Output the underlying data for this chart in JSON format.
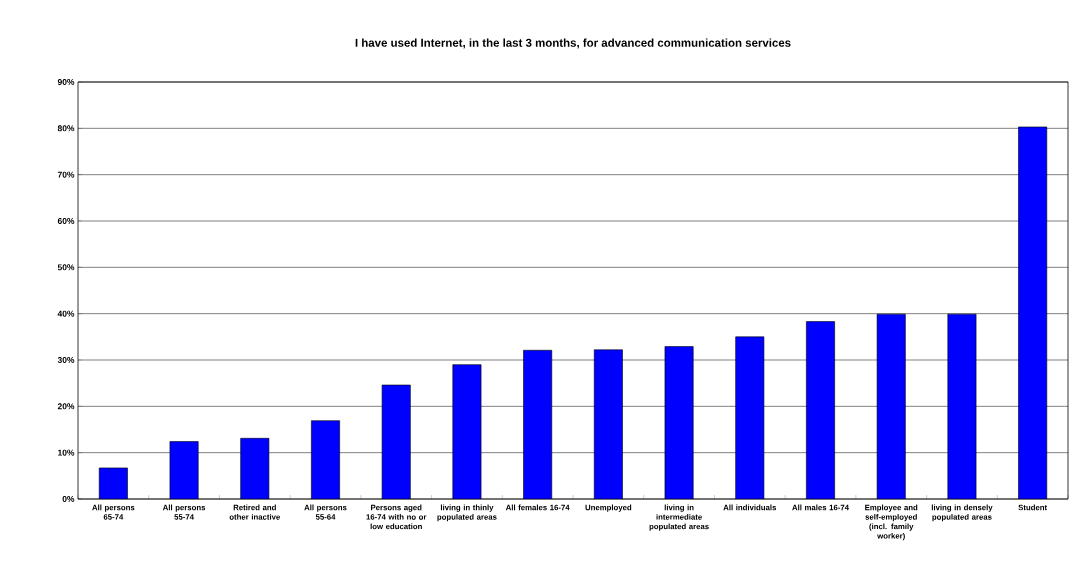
{
  "chart_data": {
    "type": "bar",
    "title": "I have used Internet, in the last 3 months, for advanced communication services",
    "categories": [
      "All persons 65-74",
      "All persons 55-74",
      "Retired and other inactive",
      "All persons 55-64",
      "Persons aged 16-74 with no or low education",
      "living in thinly populated areas",
      "All females 16-74",
      "Unemployed",
      "living in intermediate populated areas",
      "All individuals",
      "All males 16-74",
      "Employee and self-employed (incl. family worker)",
      "living in densely populated areas",
      "Student"
    ],
    "values": [
      6.7,
      12.4,
      13.1,
      16.9,
      24.6,
      29.0,
      32.1,
      32.2,
      32.9,
      35.0,
      38.3,
      39.9,
      39.9,
      80.3
    ],
    "color": "#0000ff",
    "ylim": [
      0,
      90
    ],
    "yticks": [
      {
        "value": 0,
        "label": "0%"
      },
      {
        "value": 10,
        "label": "10%"
      },
      {
        "value": 20,
        "label": "20%"
      },
      {
        "value": 30,
        "label": "30%"
      },
      {
        "value": 40,
        "label": "40%"
      },
      {
        "value": 50,
        "label": "50%"
      },
      {
        "value": 60,
        "label": "60%"
      },
      {
        "value": 70,
        "label": "70%"
      },
      {
        "value": 80,
        "label": "80%"
      },
      {
        "value": 90,
        "label": "90%"
      }
    ],
    "grid": "y"
  }
}
